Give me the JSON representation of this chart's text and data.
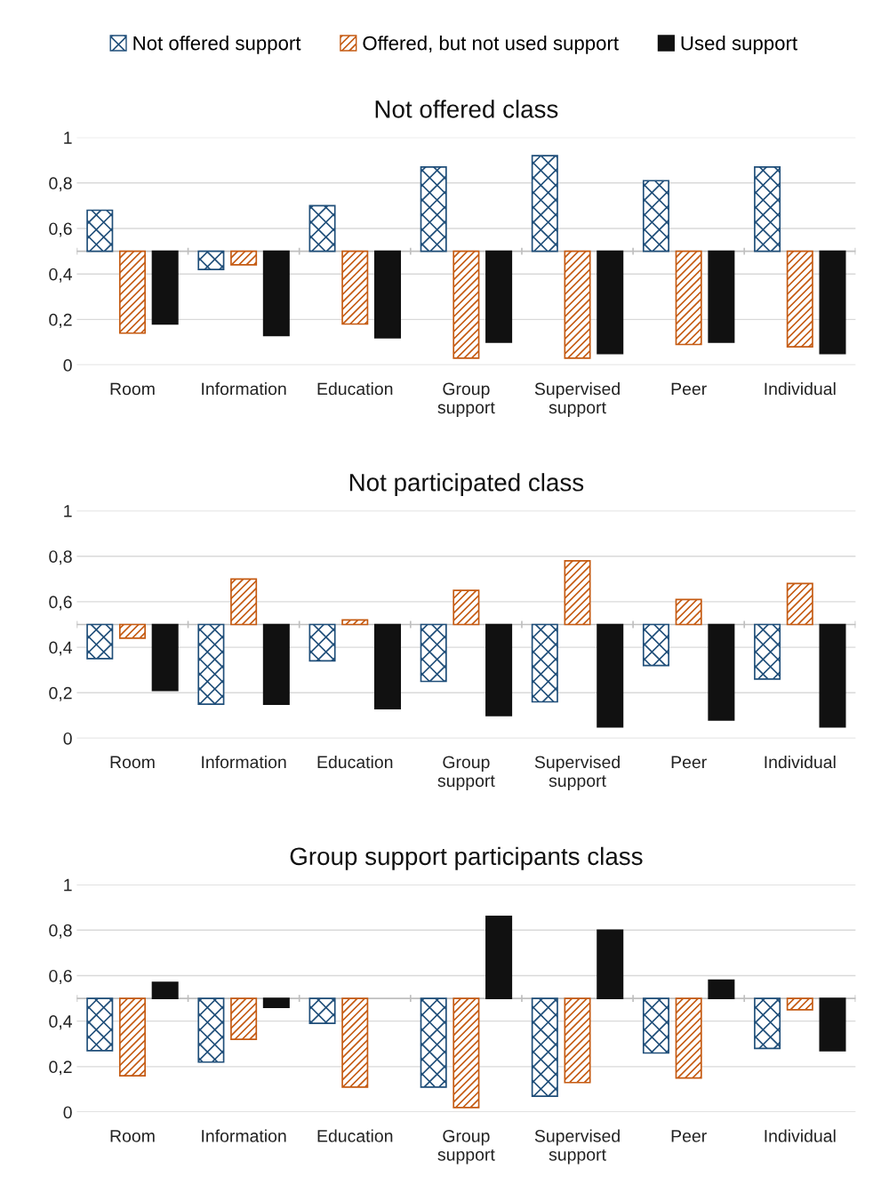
{
  "chart_data": [
    {
      "type": "bar",
      "title": "Not offered class",
      "categories": [
        "Room",
        "Information",
        "Education",
        "Group\nsupport",
        "Supervised\nsupport",
        "Peer",
        "Individual"
      ],
      "ylim": [
        0,
        1
      ],
      "yticks": [
        0,
        {
          "value": 0.2,
          "label": "0,2"
        },
        {
          "value": 0.4,
          "label": "0,4"
        },
        {
          "value": 0.6,
          "label": "0,6"
        },
        {
          "value": 0.8,
          "label": "0,8"
        },
        1
      ],
      "grid": "y",
      "legend": "top",
      "ref_lines": [
        {
          "axis": "y",
          "value": 0.5,
          "color": "#bfbfbf"
        }
      ],
      "series": [
        {
          "name": "Not offered support",
          "color": "#1f4e79",
          "base": [
            0.5,
            0.5,
            0.5,
            0.5,
            0.5,
            0.5,
            0.5
          ],
          "values": [
            0.18,
            -0.08,
            0.2,
            0.37,
            0.42,
            0.31,
            0.37
          ]
        },
        {
          "name": "Offered, but not used support",
          "color": "#c55a11",
          "base": [
            0.5,
            0.5,
            0.5,
            0.5,
            0.5,
            0.5,
            0.5
          ],
          "values": [
            -0.36,
            -0.06,
            -0.32,
            -0.47,
            -0.47,
            -0.41,
            -0.42
          ]
        },
        {
          "name": "Used support",
          "color": "#111111",
          "base": [
            0.5,
            0.5,
            0.5,
            0.5,
            0.5,
            0.5,
            0.5
          ],
          "values": [
            -0.32,
            -0.37,
            -0.38,
            -0.4,
            -0.45,
            -0.4,
            -0.45
          ]
        }
      ]
    },
    {
      "type": "bar",
      "title": "Not participated class",
      "categories": [
        "Room",
        "Information",
        "Education",
        "Group\nsupport",
        "Supervised\nsupport",
        "Peer",
        "Individual"
      ],
      "ylim": [
        0,
        1
      ],
      "yticks": [
        0,
        {
          "value": 0.2,
          "label": "0,2"
        },
        {
          "value": 0.4,
          "label": "0,4"
        },
        {
          "value": 0.6,
          "label": "0,6"
        },
        {
          "value": 0.8,
          "label": "0,8"
        },
        1
      ],
      "grid": "y",
      "ref_lines": [
        {
          "axis": "y",
          "value": 0.5,
          "color": "#bfbfbf"
        }
      ],
      "series": [
        {
          "color": "#1f4e79",
          "base": [
            0.5,
            0.5,
            0.5,
            0.5,
            0.5,
            0.5,
            0.5
          ],
          "values": [
            -0.15,
            -0.35,
            -0.16,
            -0.25,
            -0.34,
            -0.18,
            -0.24
          ]
        },
        {
          "color": "#c55a11",
          "base": [
            0.5,
            0.5,
            0.5,
            0.5,
            0.5,
            0.5,
            0.5
          ],
          "values": [
            -0.06,
            0.2,
            0.02,
            0.15,
            0.28,
            0.11,
            0.18
          ]
        },
        {
          "color": "#111111",
          "base": [
            0.5,
            0.5,
            0.5,
            0.5,
            0.5,
            0.5,
            0.5
          ],
          "values": [
            -0.29,
            -0.35,
            -0.37,
            -0.4,
            -0.45,
            -0.42,
            -0.45
          ]
        }
      ]
    },
    {
      "type": "bar",
      "title": "Group support participants class",
      "categories": [
        "Room",
        "Information",
        "Education",
        "Group\nsupport",
        "Supervised\nsupport",
        "Peer",
        "Individual"
      ],
      "ylim": [
        0,
        1
      ],
      "yticks": [
        0,
        {
          "value": 0.2,
          "label": "0,2"
        },
        {
          "value": 0.4,
          "label": "0,4"
        },
        {
          "value": 0.6,
          "label": "0,6"
        },
        {
          "value": 0.8,
          "label": "0,8"
        },
        1
      ],
      "grid": "y",
      "ref_lines": [
        {
          "axis": "y",
          "value": 0.5,
          "color": "#bfbfbf"
        }
      ],
      "series": [
        {
          "color": "#1f4e79",
          "base": [
            0.5,
            0.5,
            0.5,
            0.5,
            0.5,
            0.5,
            0.5
          ],
          "values": [
            -0.23,
            -0.28,
            -0.11,
            -0.39,
            -0.43,
            -0.24,
            -0.22
          ]
        },
        {
          "color": "#c55a11",
          "base": [
            0.5,
            0.5,
            0.5,
            0.5,
            0.5,
            0.5,
            0.5
          ],
          "values": [
            -0.34,
            -0.18,
            -0.39,
            -0.48,
            -0.37,
            -0.35,
            -0.05
          ]
        },
        {
          "color": "#111111",
          "base": [
            0.5,
            0.5,
            null,
            0.5,
            0.5,
            0.5,
            0.5
          ],
          "values": [
            0.07,
            -0.04,
            null,
            0.36,
            0.3,
            0.08,
            -0.23
          ]
        }
      ]
    }
  ]
}
